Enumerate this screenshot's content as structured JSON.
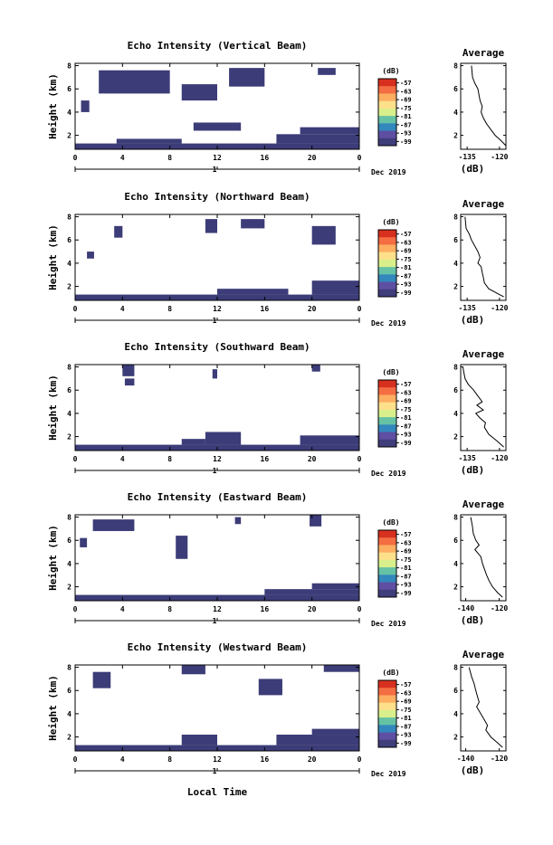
{
  "figure": {
    "colorbar_labels": [
      "-57",
      "-63",
      "-69",
      "-75",
      "-81",
      "-87",
      "-93",
      "-99"
    ],
    "colorbar_colors": [
      "#d7301f",
      "#f46d43",
      "#fdae61",
      "#fee08b",
      "#d9ef8b",
      "#66c2a5",
      "#3288bd",
      "#5e4fa2",
      "#3f3d7a"
    ],
    "echo_fill_color": "#3c3c78",
    "xlabel": "Local Time",
    "date_label": "Dec 2019",
    "secondary_axis_label": "1"
  },
  "chart_data": [
    {
      "type": "heatmap",
      "title": "Echo Intensity (Vertical Beam)",
      "ylabel": "Height (km)",
      "colorbar_unit": "(dB)",
      "x_ticks": [
        "0",
        "4",
        "8",
        "12",
        "16",
        "20",
        "0"
      ],
      "y_ticks": [
        "2",
        "4",
        "6",
        "8"
      ],
      "xlim": [
        0,
        24
      ],
      "ylim": [
        0.8,
        8.2
      ],
      "echo_regions": [
        {
          "t0": 0,
          "t1": 24,
          "h0": 0.8,
          "h1": 1.3
        },
        {
          "t0": 3.5,
          "t1": 9,
          "h0": 1.3,
          "h1": 1.7
        },
        {
          "t0": 10,
          "t1": 14,
          "h0": 2.4,
          "h1": 3.1
        },
        {
          "t0": 17,
          "t1": 24,
          "h0": 1.3,
          "h1": 2.1
        },
        {
          "t0": 19,
          "t1": 24,
          "h0": 2.1,
          "h1": 2.7
        },
        {
          "t0": 2,
          "t1": 8,
          "h0": 5.6,
          "h1": 7.6
        },
        {
          "t0": 9,
          "t1": 12,
          "h0": 5.0,
          "h1": 6.4
        },
        {
          "t0": 13,
          "t1": 16,
          "h0": 6.2,
          "h1": 7.8
        },
        {
          "t0": 0.5,
          "t1": 1.2,
          "h0": 4.0,
          "h1": 5.0
        },
        {
          "t0": 20.5,
          "t1": 22,
          "h0": 7.2,
          "h1": 7.8
        }
      ]
    },
    {
      "type": "heatmap",
      "title": "Echo Intensity (Northward Beam)",
      "ylabel": "Height (km)",
      "colorbar_unit": "(dB)",
      "x_ticks": [
        "0",
        "4",
        "8",
        "12",
        "16",
        "20",
        "0"
      ],
      "y_ticks": [
        "2",
        "4",
        "6",
        "8"
      ],
      "xlim": [
        0,
        24
      ],
      "ylim": [
        0.8,
        8.2
      ],
      "echo_regions": [
        {
          "t0": 0,
          "t1": 24,
          "h0": 0.8,
          "h1": 1.3
        },
        {
          "t0": 20,
          "t1": 24,
          "h0": 1.3,
          "h1": 2.5
        },
        {
          "t0": 12,
          "t1": 18,
          "h0": 1.3,
          "h1": 1.8
        },
        {
          "t0": 3.3,
          "t1": 4.0,
          "h0": 6.2,
          "h1": 7.2
        },
        {
          "t0": 11,
          "t1": 12,
          "h0": 6.6,
          "h1": 7.8
        },
        {
          "t0": 14,
          "t1": 16,
          "h0": 7.0,
          "h1": 7.8
        },
        {
          "t0": 20,
          "t1": 22,
          "h0": 5.6,
          "h1": 7.2
        },
        {
          "t0": 1.0,
          "t1": 1.6,
          "h0": 4.4,
          "h1": 5.0
        }
      ]
    },
    {
      "type": "heatmap",
      "title": "Echo Intensity (Southward Beam)",
      "ylabel": "Height (km)",
      "colorbar_unit": "(dB)",
      "x_ticks": [
        "0",
        "4",
        "8",
        "12",
        "16",
        "20",
        "0"
      ],
      "y_ticks": [
        "2",
        "4",
        "6",
        "8"
      ],
      "xlim": [
        0,
        24
      ],
      "ylim": [
        0.8,
        8.2
      ],
      "echo_regions": [
        {
          "t0": 0,
          "t1": 24,
          "h0": 0.8,
          "h1": 1.3
        },
        {
          "t0": 11,
          "t1": 14,
          "h0": 1.3,
          "h1": 2.4
        },
        {
          "t0": 19,
          "t1": 24,
          "h0": 1.3,
          "h1": 2.1
        },
        {
          "t0": 9,
          "t1": 11,
          "h0": 1.3,
          "h1": 1.8
        },
        {
          "t0": 4,
          "t1": 5,
          "h0": 7.2,
          "h1": 8.2
        },
        {
          "t0": 4.2,
          "t1": 5.0,
          "h0": 6.4,
          "h1": 7.0
        },
        {
          "t0": 11.6,
          "t1": 12.0,
          "h0": 7.0,
          "h1": 7.8
        },
        {
          "t0": 20,
          "t1": 20.7,
          "h0": 7.6,
          "h1": 8.2
        }
      ]
    },
    {
      "type": "heatmap",
      "title": "Echo Intensity (Eastward Beam)",
      "ylabel": "Height (km)",
      "colorbar_unit": "(dB)",
      "x_ticks": [
        "0",
        "4",
        "8",
        "12",
        "16",
        "20",
        "0"
      ],
      "y_ticks": [
        "2",
        "4",
        "6",
        "8"
      ],
      "xlim": [
        0,
        24
      ],
      "ylim": [
        0.8,
        8.2
      ],
      "echo_regions": [
        {
          "t0": 0,
          "t1": 24,
          "h0": 0.8,
          "h1": 1.3
        },
        {
          "t0": 16,
          "t1": 24,
          "h0": 1.3,
          "h1": 1.8
        },
        {
          "t0": 20,
          "t1": 24,
          "h0": 1.8,
          "h1": 2.3
        },
        {
          "t0": 1.5,
          "t1": 5,
          "h0": 6.8,
          "h1": 7.8
        },
        {
          "t0": 8.5,
          "t1": 9.5,
          "h0": 4.4,
          "h1": 6.4
        },
        {
          "t0": 0.4,
          "t1": 1.0,
          "h0": 5.4,
          "h1": 6.2
        },
        {
          "t0": 19.8,
          "t1": 20.8,
          "h0": 7.2,
          "h1": 8.2
        },
        {
          "t0": 13.5,
          "t1": 14,
          "h0": 7.4,
          "h1": 8.0
        }
      ]
    },
    {
      "type": "heatmap",
      "title": "Echo Intensity (Westward Beam)",
      "ylabel": "Height (km)",
      "colorbar_unit": "(dB)",
      "x_ticks": [
        "0",
        "4",
        "8",
        "12",
        "16",
        "20",
        "0"
      ],
      "y_ticks": [
        "2",
        "4",
        "6",
        "8"
      ],
      "xlim": [
        0,
        24
      ],
      "ylim": [
        0.8,
        8.2
      ],
      "echo_regions": [
        {
          "t0": 0,
          "t1": 24,
          "h0": 0.8,
          "h1": 1.3
        },
        {
          "t0": 9,
          "t1": 12,
          "h0": 1.3,
          "h1": 2.2
        },
        {
          "t0": 17,
          "t1": 24,
          "h0": 1.3,
          "h1": 2.2
        },
        {
          "t0": 20,
          "t1": 24,
          "h0": 2.2,
          "h1": 2.7
        },
        {
          "t0": 1.5,
          "t1": 3,
          "h0": 6.2,
          "h1": 7.6
        },
        {
          "t0": 15.5,
          "t1": 17.5,
          "h0": 5.6,
          "h1": 7.0
        },
        {
          "t0": 9,
          "t1": 11,
          "h0": 7.4,
          "h1": 8.2
        },
        {
          "t0": 21,
          "t1": 24,
          "h0": 7.6,
          "h1": 8.2
        }
      ]
    },
    {
      "type": "line",
      "title": "Average",
      "xlabel": "(dB)",
      "x_ticks": [
        "-135",
        "-120"
      ],
      "y_ticks": [
        "2",
        "4",
        "6",
        "8"
      ],
      "xlim": [
        -138,
        -117
      ],
      "ylim": [
        0.8,
        8.2
      ],
      "x": [
        -133,
        -132.5,
        -131.5,
        -130,
        -129.5,
        -129,
        -128,
        -128.5,
        -127.5,
        -126,
        -124,
        -122,
        -119,
        -117
      ],
      "y": [
        8.0,
        7.0,
        6.5,
        6.0,
        5.5,
        5.0,
        4.5,
        4.0,
        3.5,
        3.0,
        2.5,
        2.0,
        1.5,
        1.1
      ]
    },
    {
      "type": "line",
      "title": "Average",
      "xlabel": "(dB)",
      "x_ticks": [
        "-135",
        "-120"
      ],
      "y_ticks": [
        "2",
        "4",
        "6",
        "8"
      ],
      "xlim": [
        -138,
        -117
      ],
      "ylim": [
        0.8,
        8.2
      ],
      "x": [
        -136,
        -135.5,
        -134,
        -133,
        -131.5,
        -130,
        -129,
        -130,
        -128.5,
        -128,
        -127.5,
        -127,
        -125,
        -121,
        -118
      ],
      "y": [
        8.0,
        7.0,
        6.5,
        6.0,
        5.5,
        5.0,
        4.5,
        4.0,
        3.7,
        3.2,
        2.8,
        2.3,
        1.8,
        1.4,
        1.1
      ]
    },
    {
      "type": "line",
      "title": "Average",
      "xlabel": "(dB)",
      "x_ticks": [
        "-135",
        "-120"
      ],
      "y_ticks": [
        "2",
        "4",
        "6",
        "8"
      ],
      "xlim": [
        -138,
        -117
      ],
      "ylim": [
        0.8,
        8.2
      ],
      "x": [
        -137,
        -136,
        -134.5,
        -132,
        -130,
        -128,
        -130.5,
        -127.5,
        -131,
        -129,
        -126.5,
        -127,
        -125,
        -121,
        -118
      ],
      "y": [
        8.0,
        7.0,
        6.5,
        6.0,
        5.5,
        5.0,
        4.7,
        4.3,
        4.0,
        3.6,
        3.2,
        2.8,
        2.2,
        1.6,
        1.1
      ]
    },
    {
      "type": "line",
      "title": "Average",
      "xlabel": "(dB)",
      "x_ticks": [
        "-140",
        "-120"
      ],
      "y_ticks": [
        "2",
        "4",
        "6",
        "8"
      ],
      "xlim": [
        -143,
        -116
      ],
      "ylim": [
        0.8,
        8.2
      ],
      "x": [
        -137,
        -136,
        -135.5,
        -134,
        -132,
        -134.5,
        -131,
        -130,
        -129,
        -127.5,
        -126,
        -124,
        -121,
        -118
      ],
      "y": [
        8.0,
        7.2,
        6.6,
        6.0,
        5.6,
        5.2,
        4.6,
        4.0,
        3.6,
        3.0,
        2.5,
        2.0,
        1.5,
        1.1
      ]
    },
    {
      "type": "line",
      "title": "Average",
      "xlabel": "(dB)",
      "x_ticks": [
        "-140",
        "-120"
      ],
      "y_ticks": [
        "2",
        "4",
        "6",
        "8"
      ],
      "xlim": [
        -143,
        -116
      ],
      "ylim": [
        0.8,
        8.2
      ],
      "x": [
        -138,
        -136.5,
        -135,
        -134,
        -133,
        -132,
        -133.5,
        -131,
        -129,
        -127,
        -128,
        -125,
        -121,
        -118
      ],
      "y": [
        8.0,
        7.2,
        6.6,
        6.0,
        5.5,
        5.0,
        4.6,
        4.0,
        3.5,
        3.0,
        2.6,
        2.0,
        1.5,
        1.1
      ]
    }
  ]
}
